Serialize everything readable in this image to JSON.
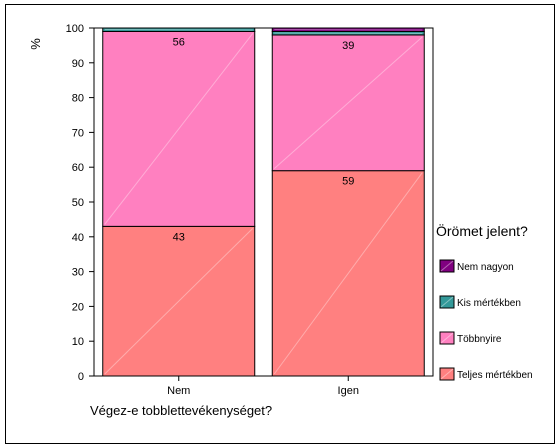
{
  "chart_data": {
    "type": "bar",
    "stacked": true,
    "categories": [
      "Nem",
      "Igen"
    ],
    "series": [
      {
        "name": "Teljes mértékben",
        "values": [
          43,
          59
        ],
        "color": "#ff8080"
      },
      {
        "name": "Többnyire",
        "values": [
          56,
          39
        ],
        "color": "#ff80c0"
      },
      {
        "name": "Kis mértékben",
        "values": [
          1,
          1
        ],
        "color": "#339999"
      },
      {
        "name": "Nem nagyon",
        "values": [
          0,
          1
        ],
        "color": "#800080"
      }
    ],
    "data_labels": {
      "Teljes mértékben": [
        "43",
        "59"
      ],
      "Többnyire": [
        "56",
        "39"
      ]
    },
    "ylabel": "%",
    "xlabel": "Végez-e tobblettevékenységet?",
    "ylim": [
      0,
      100
    ],
    "yticks": [
      "0",
      "10",
      "20",
      "30",
      "40",
      "50",
      "60",
      "70",
      "80",
      "90",
      "100"
    ],
    "grid": false,
    "legend": {
      "title": "Örömet jelent?",
      "position": "right",
      "order": [
        "Nem nagyon",
        "Kis mértékben",
        "Többnyire",
        "Teljes mértékben"
      ]
    }
  }
}
